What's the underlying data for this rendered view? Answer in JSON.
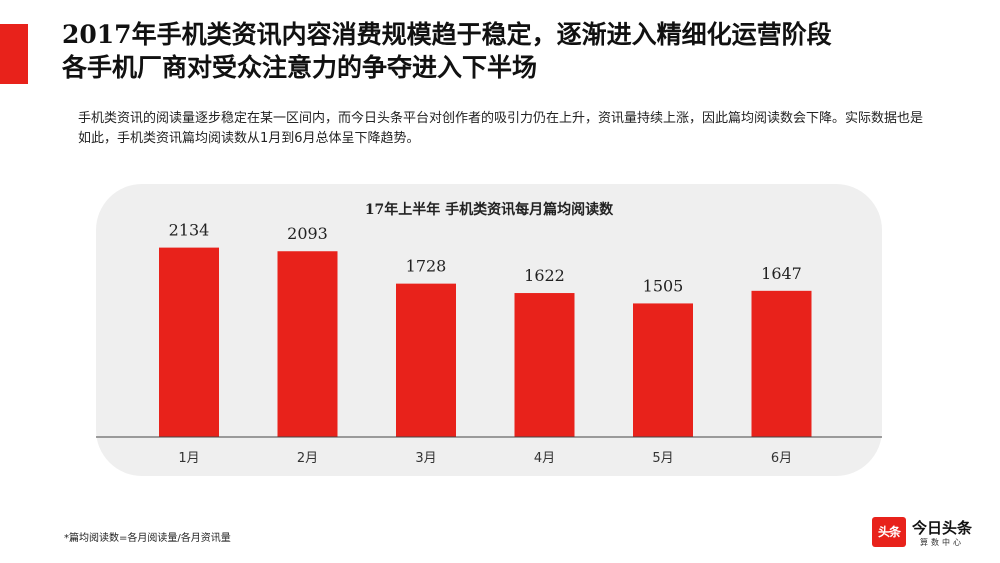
{
  "header": {
    "title_line1": "2017年手机类资讯内容消费规模趋于稳定，逐渐进入精细化运营阶段",
    "title_line2": "各手机厂商对受众注意力的争夺进入下半场",
    "description": "手机类资讯的阅读量逐步稳定在某一区间内，而今日头条平台对创作者的吸引力仍在上升，资讯量持续上涨，因此篇均阅读数会下降。实际数据也是如此，手机类资讯篇均阅读数从1月到6月总体呈下降趋势。"
  },
  "chart_data": {
    "type": "bar",
    "title": "17年上半年 手机类资讯每月篇均阅读数",
    "categories": [
      "1月",
      "2月",
      "3月",
      "4月",
      "5月",
      "6月"
    ],
    "values": [
      2134,
      2093,
      1728,
      1622,
      1505,
      1647
    ],
    "ylim": [
      0,
      2400
    ],
    "grid": false,
    "bar_color": "#e8221b"
  },
  "footnote": "*篇均阅读数=各月阅读量/各月资讯量",
  "logo": {
    "badge": "头条",
    "name": "今日头条",
    "sub": "算数中心"
  },
  "colors": {
    "accent": "#e8221b",
    "panel": "#efefef"
  }
}
